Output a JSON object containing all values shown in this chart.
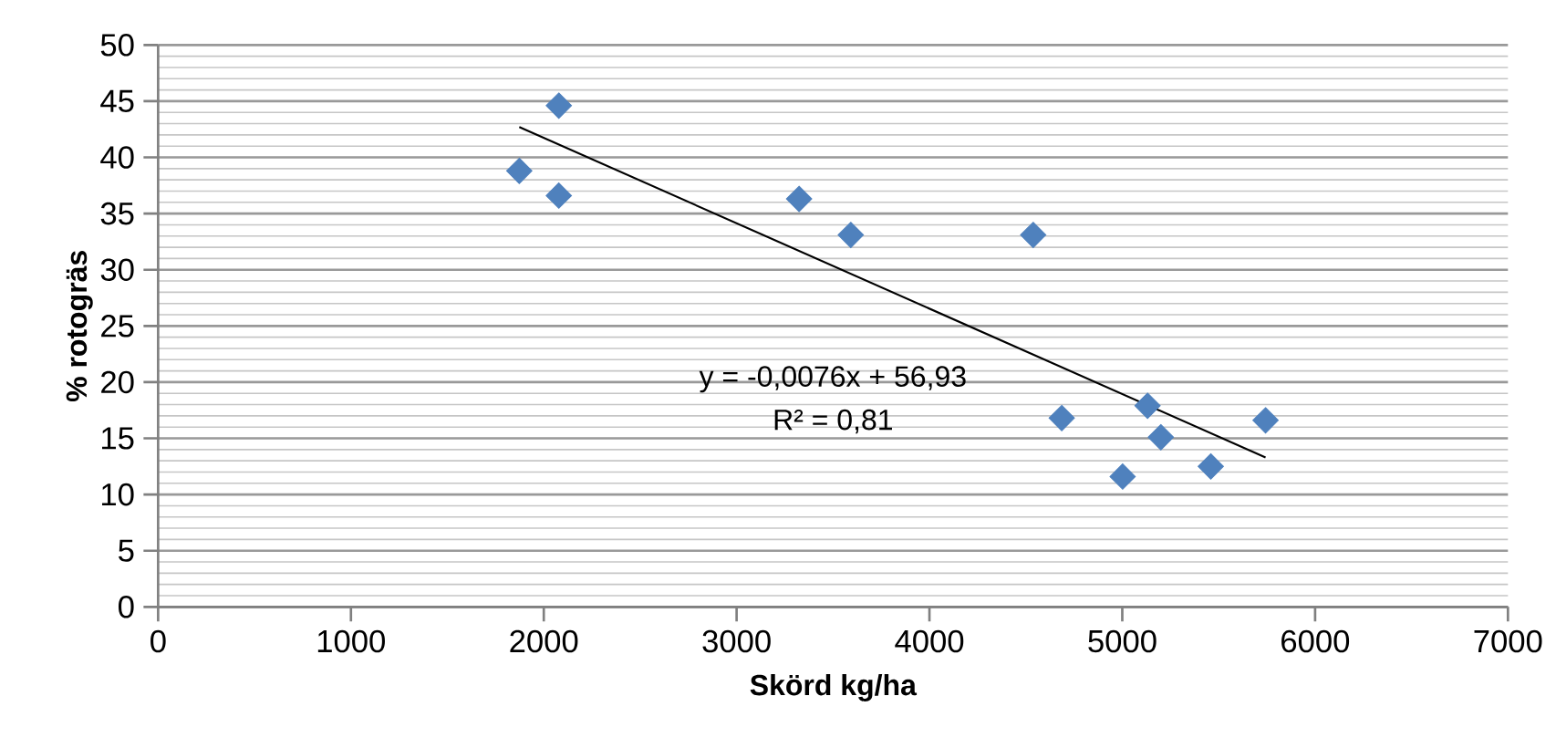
{
  "chart_data": {
    "type": "scatter",
    "xlabel": "Skörd kg/ha",
    "ylabel": "% rotogräs",
    "xlim": [
      0,
      7000
    ],
    "xticks": [
      0,
      1000,
      2000,
      3000,
      4000,
      5000,
      6000,
      7000
    ],
    "ylim": [
      0,
      50
    ],
    "yticks": [
      0,
      5,
      10,
      15,
      20,
      25,
      30,
      35,
      40,
      45,
      50
    ],
    "grid": "y",
    "marker": "diamond",
    "annotations": [
      "y = -0,0076x + 56,93",
      "R² = 0,81"
    ],
    "series": [
      {
        "color": "#4f81bd",
        "x": [
          1873,
          2078,
          2078,
          3324,
          3592,
          4538,
          4686,
          5131,
          5200,
          5002,
          5459,
          5743
        ],
        "values": [
          38.8,
          44.6,
          36.6,
          36.3,
          33.1,
          33.1,
          16.8,
          17.9,
          15.1,
          11.6,
          12.5,
          16.6
        ]
      },
      {
        "type": "line",
        "color": "#000000",
        "marker": "none",
        "line_style": "solid",
        "x": [
          1873,
          5743
        ],
        "values": [
          42.7,
          13.3
        ]
      }
    ]
  }
}
